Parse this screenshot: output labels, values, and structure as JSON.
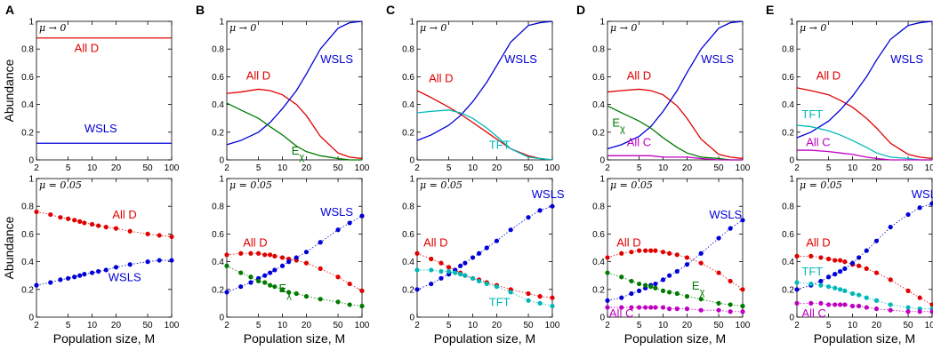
{
  "figure": {
    "panel_letters": [
      "A",
      "B",
      "C",
      "D",
      "E"
    ],
    "row_ylabel": "Abundance",
    "xlabel": "Population size, M",
    "row_labels": [
      "μ → 0",
      "μ = 0.05"
    ],
    "x_tick_labels": [
      "2",
      "5",
      "10",
      "20",
      "50",
      "100"
    ],
    "y_tick_labels": [
      "0",
      "0.2",
      "0.4",
      "0.6",
      "0.8",
      "1"
    ]
  },
  "chart_data": [
    {
      "panel": "A",
      "row": "μ → 0",
      "type": "line",
      "x_scale": "log",
      "xlim": [
        2,
        100
      ],
      "ylim": [
        0,
        1
      ],
      "x": [
        2,
        5,
        10,
        20,
        50,
        100
      ],
      "series": [
        {
          "name": "All D",
          "color": "#e00000",
          "values": [
            0.88,
            0.88,
            0.88,
            0.88,
            0.88,
            0.88
          ]
        },
        {
          "name": "WSLS",
          "color": "#0000d8",
          "values": [
            0.12,
            0.12,
            0.12,
            0.12,
            0.12,
            0.12
          ]
        }
      ]
    },
    {
      "panel": "B",
      "row": "μ → 0",
      "type": "line",
      "x_scale": "log",
      "xlim": [
        2,
        100
      ],
      "ylim": [
        0,
        1
      ],
      "x": [
        2,
        3,
        5,
        7,
        10,
        15,
        20,
        30,
        50,
        70,
        100
      ],
      "series": [
        {
          "name": "All D",
          "color": "#e00000",
          "values": [
            0.48,
            0.49,
            0.51,
            0.5,
            0.47,
            0.4,
            0.32,
            0.17,
            0.05,
            0.02,
            0.01
          ]
        },
        {
          "name": "WSLS",
          "color": "#0000d8",
          "values": [
            0.11,
            0.14,
            0.2,
            0.27,
            0.37,
            0.5,
            0.62,
            0.8,
            0.95,
            0.99,
            1.0
          ]
        },
        {
          "name": "E",
          "subscript": "χ",
          "color": "#007a00",
          "values": [
            0.41,
            0.36,
            0.3,
            0.24,
            0.18,
            0.1,
            0.06,
            0.03,
            0.01,
            0.0,
            0.0
          ]
        }
      ]
    },
    {
      "panel": "C",
      "row": "μ → 0",
      "type": "line",
      "x_scale": "log",
      "xlim": [
        2,
        100
      ],
      "ylim": [
        0,
        1
      ],
      "x": [
        2,
        3,
        5,
        7,
        10,
        15,
        20,
        30,
        50,
        70,
        100
      ],
      "series": [
        {
          "name": "All D",
          "color": "#e00000",
          "values": [
            0.5,
            0.45,
            0.38,
            0.33,
            0.27,
            0.2,
            0.15,
            0.08,
            0.03,
            0.01,
            0.0
          ]
        },
        {
          "name": "WSLS",
          "color": "#0000d8",
          "values": [
            0.14,
            0.18,
            0.25,
            0.32,
            0.42,
            0.56,
            0.68,
            0.85,
            0.97,
            0.99,
            1.0
          ]
        },
        {
          "name": "TFT",
          "color": "#00b8b8",
          "values": [
            0.34,
            0.35,
            0.36,
            0.34,
            0.3,
            0.23,
            0.17,
            0.08,
            0.02,
            0.01,
            0.0
          ]
        }
      ]
    },
    {
      "panel": "D",
      "row": "μ → 0",
      "type": "line",
      "x_scale": "log",
      "xlim": [
        2,
        100
      ],
      "ylim": [
        0,
        1
      ],
      "x": [
        2,
        3,
        5,
        7,
        10,
        15,
        20,
        30,
        50,
        70,
        100
      ],
      "series": [
        {
          "name": "All D",
          "color": "#e00000",
          "values": [
            0.49,
            0.5,
            0.51,
            0.5,
            0.47,
            0.39,
            0.3,
            0.15,
            0.04,
            0.02,
            0.01
          ]
        },
        {
          "name": "WSLS",
          "color": "#0000d8",
          "values": [
            0.08,
            0.11,
            0.17,
            0.24,
            0.35,
            0.5,
            0.63,
            0.8,
            0.95,
            0.99,
            1.0
          ]
        },
        {
          "name": "E",
          "subscript": "χ",
          "color": "#007a00",
          "values": [
            0.39,
            0.34,
            0.28,
            0.23,
            0.16,
            0.09,
            0.05,
            0.02,
            0.01,
            0.0,
            0.0
          ]
        },
        {
          "name": "All C",
          "color": "#c000c0",
          "values": [
            0.03,
            0.03,
            0.03,
            0.03,
            0.02,
            0.02,
            0.02,
            0.01,
            0.0,
            0.0,
            0.0
          ]
        }
      ]
    },
    {
      "panel": "E",
      "row": "μ → 0",
      "type": "line",
      "x_scale": "log",
      "xlim": [
        2,
        100
      ],
      "ylim": [
        0,
        1
      ],
      "x": [
        2,
        3,
        5,
        7,
        10,
        15,
        20,
        30,
        50,
        70,
        100
      ],
      "series": [
        {
          "name": "All D",
          "color": "#e00000",
          "values": [
            0.52,
            0.5,
            0.47,
            0.43,
            0.38,
            0.3,
            0.23,
            0.12,
            0.04,
            0.02,
            0.01
          ]
        },
        {
          "name": "WSLS",
          "color": "#0000d8",
          "values": [
            0.16,
            0.2,
            0.28,
            0.36,
            0.46,
            0.6,
            0.72,
            0.87,
            0.97,
            0.99,
            1.0
          ]
        },
        {
          "name": "TFT",
          "color": "#00b8b8",
          "values": [
            0.25,
            0.24,
            0.21,
            0.18,
            0.14,
            0.09,
            0.05,
            0.02,
            0.01,
            0.0,
            0.0
          ]
        },
        {
          "name": "All C",
          "color": "#c000c0",
          "values": [
            0.07,
            0.07,
            0.06,
            0.05,
            0.04,
            0.02,
            0.01,
            0.0,
            0.0,
            0.0,
            0.0
          ]
        }
      ]
    },
    {
      "panel": "A",
      "row": "μ = 0.05",
      "type": "scatter",
      "x_scale": "log",
      "xlim": [
        2,
        100
      ],
      "ylim": [
        0,
        1
      ],
      "x": [
        2,
        3,
        4,
        5,
        6,
        7,
        8,
        10,
        12,
        15,
        20,
        30,
        50,
        70,
        100
      ],
      "series": [
        {
          "name": "All D",
          "color": "#e00000",
          "values": [
            0.76,
            0.74,
            0.72,
            0.71,
            0.7,
            0.69,
            0.68,
            0.67,
            0.66,
            0.65,
            0.64,
            0.62,
            0.6,
            0.59,
            0.58
          ]
        },
        {
          "name": "WSLS",
          "color": "#0000d8",
          "values": [
            0.23,
            0.25,
            0.27,
            0.28,
            0.29,
            0.3,
            0.31,
            0.32,
            0.33,
            0.34,
            0.36,
            0.38,
            0.4,
            0.41,
            0.41
          ]
        }
      ]
    },
    {
      "panel": "B",
      "row": "μ = 0.05",
      "type": "scatter",
      "x_scale": "log",
      "xlim": [
        2,
        100
      ],
      "ylim": [
        0,
        1
      ],
      "x": [
        2,
        3,
        4,
        5,
        6,
        7,
        8,
        10,
        12,
        15,
        20,
        30,
        50,
        70,
        100
      ],
      "series": [
        {
          "name": "All D",
          "color": "#e00000",
          "values": [
            0.45,
            0.46,
            0.46,
            0.46,
            0.45,
            0.45,
            0.44,
            0.43,
            0.42,
            0.41,
            0.39,
            0.35,
            0.29,
            0.24,
            0.19
          ]
        },
        {
          "name": "WSLS",
          "color": "#0000d8",
          "values": [
            0.18,
            0.22,
            0.25,
            0.28,
            0.3,
            0.32,
            0.34,
            0.37,
            0.4,
            0.43,
            0.47,
            0.54,
            0.63,
            0.68,
            0.73
          ]
        },
        {
          "name": "E",
          "subscript": "χ",
          "color": "#007a00",
          "values": [
            0.37,
            0.32,
            0.29,
            0.26,
            0.25,
            0.23,
            0.22,
            0.2,
            0.18,
            0.17,
            0.15,
            0.13,
            0.11,
            0.09,
            0.08
          ]
        }
      ]
    },
    {
      "panel": "C",
      "row": "μ = 0.05",
      "type": "scatter",
      "x_scale": "log",
      "xlim": [
        2,
        100
      ],
      "ylim": [
        0,
        1
      ],
      "x": [
        2,
        3,
        4,
        5,
        6,
        7,
        8,
        10,
        12,
        15,
        20,
        30,
        50,
        70,
        100
      ],
      "series": [
        {
          "name": "All D",
          "color": "#e00000",
          "values": [
            0.46,
            0.42,
            0.39,
            0.36,
            0.34,
            0.32,
            0.3,
            0.28,
            0.27,
            0.25,
            0.23,
            0.2,
            0.17,
            0.15,
            0.14
          ]
        },
        {
          "name": "WSLS",
          "color": "#0000d8",
          "values": [
            0.2,
            0.24,
            0.28,
            0.31,
            0.34,
            0.37,
            0.39,
            0.43,
            0.46,
            0.5,
            0.55,
            0.63,
            0.72,
            0.77,
            0.8
          ]
        },
        {
          "name": "TFT",
          "color": "#00b8b8",
          "values": [
            0.34,
            0.34,
            0.33,
            0.33,
            0.32,
            0.31,
            0.3,
            0.28,
            0.26,
            0.24,
            0.22,
            0.18,
            0.12,
            0.1,
            0.08
          ]
        }
      ]
    },
    {
      "panel": "D",
      "row": "μ = 0.05",
      "type": "scatter",
      "x_scale": "log",
      "xlim": [
        2,
        100
      ],
      "ylim": [
        0,
        1
      ],
      "x": [
        2,
        3,
        4,
        5,
        6,
        7,
        8,
        10,
        12,
        15,
        20,
        30,
        50,
        70,
        100
      ],
      "series": [
        {
          "name": "All D",
          "color": "#e00000",
          "values": [
            0.43,
            0.46,
            0.47,
            0.48,
            0.48,
            0.48,
            0.48,
            0.47,
            0.46,
            0.45,
            0.43,
            0.39,
            0.32,
            0.26,
            0.2
          ]
        },
        {
          "name": "WSLS",
          "color": "#0000d8",
          "values": [
            0.12,
            0.14,
            0.17,
            0.19,
            0.21,
            0.23,
            0.24,
            0.27,
            0.3,
            0.33,
            0.38,
            0.46,
            0.57,
            0.64,
            0.7
          ]
        },
        {
          "name": "E",
          "subscript": "χ",
          "color": "#007a00",
          "values": [
            0.32,
            0.29,
            0.26,
            0.24,
            0.23,
            0.22,
            0.21,
            0.19,
            0.18,
            0.17,
            0.15,
            0.13,
            0.1,
            0.09,
            0.08
          ]
        },
        {
          "name": "All C",
          "color": "#c000c0",
          "values": [
            0.07,
            0.07,
            0.07,
            0.07,
            0.07,
            0.07,
            0.07,
            0.07,
            0.06,
            0.06,
            0.06,
            0.05,
            0.05,
            0.04,
            0.04
          ]
        }
      ]
    },
    {
      "panel": "E",
      "row": "μ = 0.05",
      "type": "scatter",
      "x_scale": "log",
      "xlim": [
        2,
        100
      ],
      "ylim": [
        0,
        1
      ],
      "x": [
        2,
        3,
        4,
        5,
        6,
        7,
        8,
        10,
        12,
        15,
        20,
        30,
        50,
        70,
        100
      ],
      "series": [
        {
          "name": "All D",
          "color": "#e00000",
          "values": [
            0.44,
            0.44,
            0.43,
            0.42,
            0.41,
            0.41,
            0.4,
            0.38,
            0.37,
            0.35,
            0.32,
            0.27,
            0.19,
            0.14,
            0.09
          ]
        },
        {
          "name": "WSLS",
          "color": "#0000d8",
          "values": [
            0.2,
            0.23,
            0.26,
            0.29,
            0.31,
            0.33,
            0.35,
            0.39,
            0.43,
            0.48,
            0.55,
            0.65,
            0.74,
            0.79,
            0.82
          ]
        },
        {
          "name": "TFT",
          "color": "#00b8b8",
          "values": [
            0.25,
            0.24,
            0.23,
            0.22,
            0.21,
            0.2,
            0.19,
            0.17,
            0.16,
            0.14,
            0.12,
            0.09,
            0.07,
            0.06,
            0.06
          ]
        },
        {
          "name": "All C",
          "color": "#c000c0",
          "values": [
            0.1,
            0.1,
            0.1,
            0.09,
            0.09,
            0.09,
            0.09,
            0.08,
            0.08,
            0.07,
            0.06,
            0.05,
            0.04,
            0.04,
            0.04
          ]
        }
      ]
    }
  ]
}
